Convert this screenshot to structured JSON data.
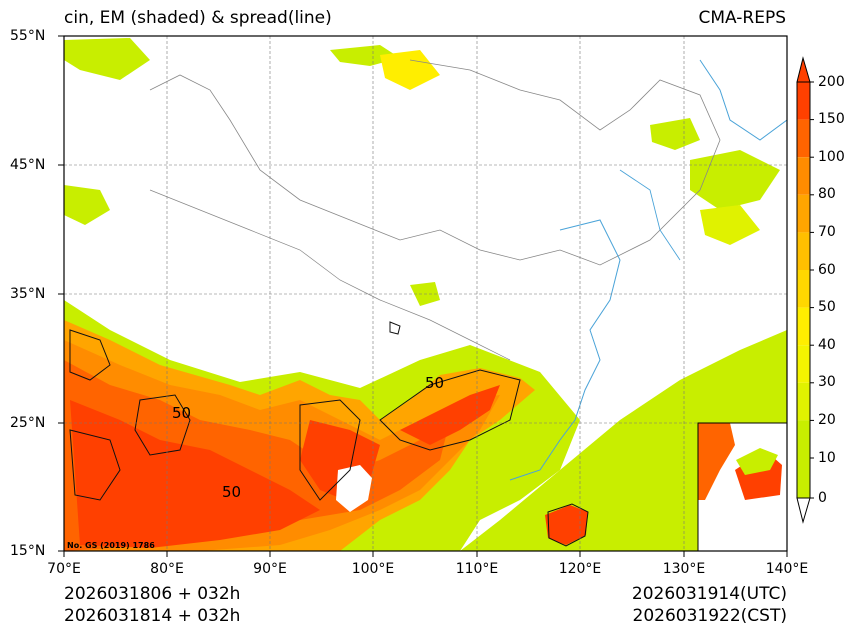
{
  "title_left": "cin, EM (shaded) & spread(line)",
  "title_right": "CMA-REPS",
  "lat_labels": [
    "55°N",
    "45°N",
    "35°N",
    "25°N",
    "15°N"
  ],
  "lon_labels": [
    "70°E",
    "80°E",
    "90°E",
    "100°E",
    "110°E",
    "120°E",
    "130°E",
    "140°E"
  ],
  "colorbar": {
    "levels": [
      "200",
      "150",
      "100",
      "80",
      "70",
      "60",
      "50",
      "40",
      "30",
      "20",
      "10",
      "0"
    ],
    "colors": [
      "#ff4000",
      "#ff6400",
      "#ff8c00",
      "#ffa500",
      "#ffbf00",
      "#ffd700",
      "#ffee00",
      "#f4f400",
      "#e0f200",
      "#c8ee00"
    ],
    "over_color": "#ff4000",
    "under_color": "#ffffff"
  },
  "contour_labels": [
    "50",
    "50",
    "50"
  ],
  "map_note": "No. GS (2019) 1786",
  "footer": {
    "init_1": "2026031806  +  032h",
    "init_2": "2026031814  +  032h",
    "valid_utc": "2026031914(UTC)",
    "valid_cst": "2026031922(CST)"
  },
  "colors": {
    "shade_low": "#c8ee00",
    "shade_high": "#ff4000",
    "coast": "#4aa3d8",
    "border": "#888888"
  }
}
